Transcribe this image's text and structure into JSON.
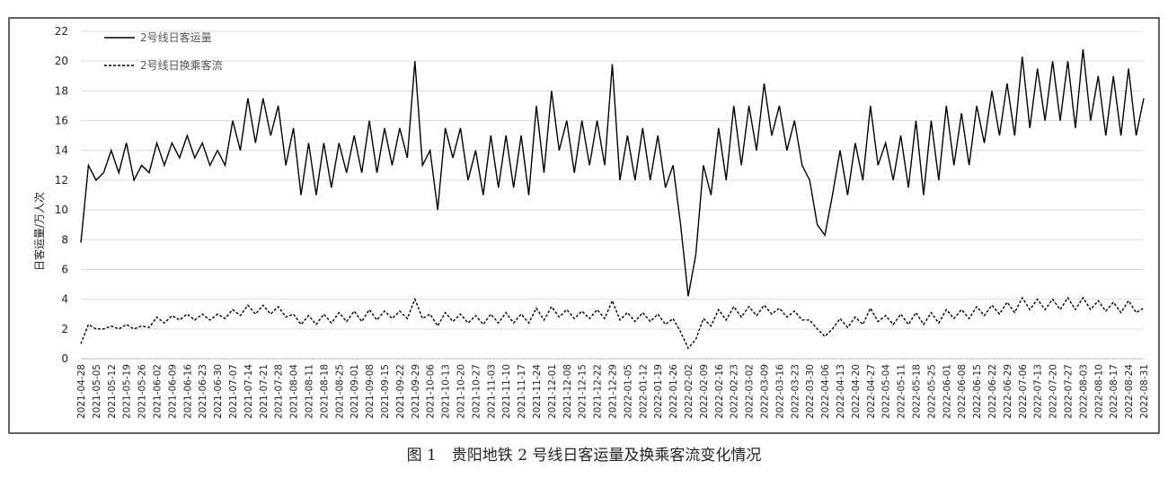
{
  "chart_data": {
    "type": "line",
    "ylabel": "日客运量/万人次",
    "caption": "图 1　贵阳地铁 2 号线日客运量及换乘客流变化情况",
    "ylim": [
      0,
      22
    ],
    "yticks": [
      0,
      2,
      4,
      6,
      8,
      10,
      12,
      14,
      16,
      18,
      20,
      22
    ],
    "grid": true,
    "legend": "top-left",
    "categories": [
      "2021-04-28",
      null,
      "2021-05-05",
      null,
      "2021-05-12",
      null,
      "2021-05-19",
      null,
      "2021-05-26",
      null,
      "2021-06-02",
      null,
      "2021-06-09",
      null,
      "2021-06-16",
      null,
      "2021-06-23",
      null,
      "2021-06-30",
      null,
      "2021-07-07",
      null,
      "2021-07-14",
      null,
      "2021-07-21",
      null,
      "2021-07-28",
      null,
      "2021-08-04",
      null,
      "2021-08-11",
      null,
      "2021-08-18",
      null,
      "2021-08-25",
      null,
      "2021-09-01",
      null,
      "2021-09-08",
      null,
      "2021-09-15",
      null,
      "2021-09-22",
      null,
      "2021-09-29",
      null,
      "2021-10-06",
      null,
      "2021-10-13",
      null,
      "2021-10-20",
      null,
      "2021-10-27",
      null,
      "2021-11-03",
      null,
      "2021-11-10",
      null,
      "2021-11-17",
      null,
      "2021-11-24",
      null,
      "2021-12-01",
      null,
      "2021-12-08",
      null,
      "2021-12-15",
      null,
      "2021-12-22",
      null,
      "2021-12-29",
      null,
      "2022-01-05",
      null,
      "2022-01-12",
      null,
      "2022-01-19",
      null,
      "2022-01-26",
      null,
      "2022-02-02",
      null,
      "2022-02-09",
      null,
      "2022-02-16",
      null,
      "2022-02-23",
      null,
      "2022-03-02",
      null,
      "2022-03-09",
      null,
      "2022-03-16",
      null,
      "2022-03-23",
      null,
      "2022-03-30",
      null,
      "2022-04-06",
      null,
      "2022-04-13",
      null,
      "2022-04-20",
      null,
      "2022-04-27",
      null,
      "2022-05-04",
      null,
      "2022-05-11",
      null,
      "2022-05-18",
      null,
      "2022-05-25",
      null,
      "2022-06-01",
      null,
      "2022-06-08",
      null,
      "2022-06-15",
      null,
      "2022-06-22",
      null,
      "2022-06-29",
      null,
      "2022-07-06",
      null,
      "2022-07-13",
      null,
      "2022-07-20",
      null,
      "2022-07-27",
      null,
      "2022-08-03",
      null,
      "2022-08-10",
      null,
      "2022-08-17",
      null,
      "2022-08-24",
      null,
      "2022-08-31"
    ],
    "series": [
      {
        "name": "2号线日客运量",
        "color": "#000000",
        "dash": "solid",
        "values": [
          7.8,
          13,
          12,
          12.5,
          14,
          12.5,
          14.5,
          12,
          13,
          12.5,
          14.5,
          13,
          14.5,
          13.5,
          15,
          13.5,
          14.5,
          13,
          14,
          13,
          16,
          14,
          17.5,
          14.5,
          17.5,
          15,
          17,
          13,
          15.5,
          11,
          14.5,
          11,
          14.5,
          11.5,
          14.5,
          12.5,
          15,
          12.5,
          16,
          12.5,
          15.5,
          13,
          15.5,
          13.5,
          20,
          13,
          14,
          10,
          15.5,
          13.5,
          15.5,
          12,
          14,
          11,
          15,
          11.5,
          15,
          11.5,
          15,
          11,
          17,
          12.5,
          18,
          14,
          16,
          12.5,
          16,
          13,
          16,
          13,
          19.8,
          12,
          15,
          12,
          15.5,
          12,
          15,
          11.5,
          13,
          9,
          4.2,
          7,
          13,
          11,
          15.5,
          12,
          17,
          13,
          17,
          14,
          18.5,
          15,
          17,
          14,
          16,
          13,
          12,
          9,
          8.3,
          11,
          14,
          11,
          14.5,
          12,
          17,
          13,
          14.5,
          12,
          15,
          11.5,
          16,
          11,
          16,
          12,
          17,
          13,
          16.5,
          13,
          17,
          14.5,
          18,
          15,
          18.5,
          15,
          20.3,
          15.5,
          19.5,
          16,
          20,
          16,
          20,
          15.5,
          20.8,
          16,
          19,
          15,
          19,
          15,
          19.5,
          15,
          17.5
        ]
      },
      {
        "name": "2号线日换乘客流",
        "color": "#000000",
        "dash": "dashed",
        "values": [
          1.0,
          2.3,
          2.0,
          2.0,
          2.2,
          2.0,
          2.3,
          2.0,
          2.2,
          2.1,
          2.8,
          2.4,
          2.9,
          2.6,
          3.0,
          2.6,
          3.0,
          2.6,
          3.0,
          2.7,
          3.3,
          2.9,
          3.6,
          3.0,
          3.6,
          3.0,
          3.5,
          2.8,
          3.0,
          2.3,
          2.9,
          2.3,
          3.0,
          2.4,
          3.1,
          2.5,
          3.2,
          2.5,
          3.3,
          2.6,
          3.2,
          2.7,
          3.2,
          2.7,
          4.0,
          2.7,
          3.0,
          2.2,
          3.1,
          2.5,
          3.0,
          2.4,
          2.9,
          2.3,
          3.0,
          2.4,
          3.1,
          2.4,
          3.0,
          2.4,
          3.4,
          2.6,
          3.5,
          2.8,
          3.3,
          2.7,
          3.2,
          2.7,
          3.3,
          2.7,
          3.9,
          2.6,
          3.1,
          2.5,
          3.1,
          2.5,
          3.0,
          2.3,
          2.7,
          1.8,
          0.7,
          1.3,
          2.7,
          2.2,
          3.3,
          2.6,
          3.5,
          2.8,
          3.5,
          2.9,
          3.6,
          3.0,
          3.4,
          2.8,
          3.2,
          2.6,
          2.6,
          2.0,
          1.5,
          2.0,
          2.7,
          2.1,
          2.8,
          2.3,
          3.4,
          2.5,
          2.9,
          2.3,
          3.0,
          2.3,
          3.1,
          2.3,
          3.1,
          2.4,
          3.3,
          2.7,
          3.3,
          2.7,
          3.5,
          2.9,
          3.6,
          3.0,
          3.8,
          3.1,
          4.1,
          3.3,
          4.0,
          3.3,
          4.0,
          3.3,
          4.1,
          3.3,
          4.1,
          3.3,
          3.9,
          3.2,
          3.8,
          3.1,
          3.9,
          3.1,
          3.4
        ]
      }
    ]
  }
}
